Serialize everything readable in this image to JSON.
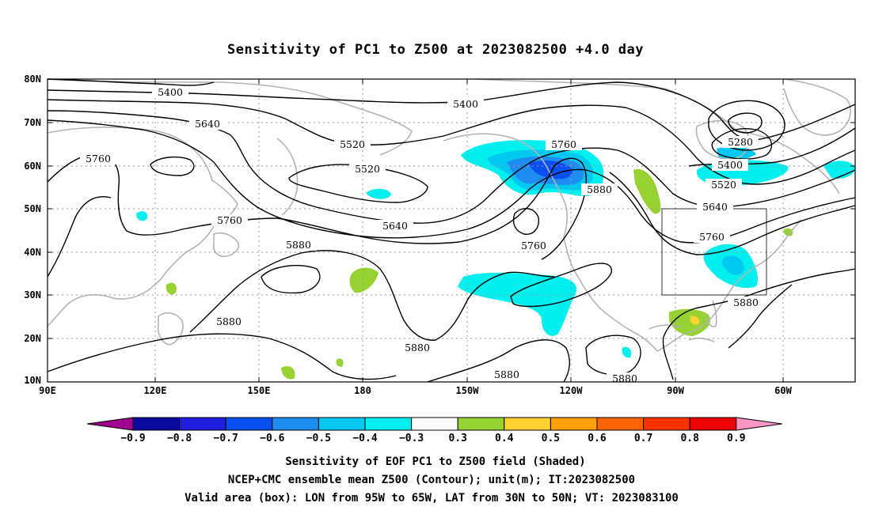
{
  "title": "Sensitivity of PC1 to Z500 at 2023082500 +4.0 day",
  "map": {
    "lat_ticks": [
      "80N",
      "70N",
      "60N",
      "50N",
      "40N",
      "30N",
      "20N",
      "10N"
    ],
    "lon_ticks": [
      "90E",
      "120E",
      "150E",
      "180",
      "150W",
      "120W",
      "90W",
      "60W"
    ],
    "grid": "dotted",
    "valid_box": {
      "lon_from": "95W",
      "lon_to": "65W",
      "lat_from": "30N",
      "lat_to": "50N"
    },
    "contour_labels": {
      "c5400a": "5400",
      "c5400b": "5400",
      "c5400c": "5400",
      "c5640a": "5640",
      "c5640b": "5640",
      "c5640c": "5640",
      "c5520a": "5520",
      "c5520b": "5520",
      "c5520c": "5520",
      "c5760a": "5760",
      "c5760b": "5760",
      "c5760c": "5760",
      "c5760d": "5760",
      "c5760e": "5760",
      "c5880a": "5880",
      "c5880b": "5880",
      "c5880c": "5880",
      "c5880d": "5880",
      "c5880e": "5880",
      "c5880f": "5880",
      "c5880g": "5880",
      "c5280": "5280"
    }
  },
  "colorbar": {
    "labels": [
      "−0.9",
      "−0.8",
      "−0.7",
      "−0.6",
      "−0.5",
      "−0.4",
      "−0.3",
      "0.3",
      "0.4",
      "0.5",
      "0.6",
      "0.7",
      "0.8",
      "0.9"
    ],
    "colors": [
      "#a00090",
      "#0a0aa0",
      "#1e1edc",
      "#0a50f0",
      "#1e8cf0",
      "#00c8f0",
      "#00f0f0",
      "#ffffff",
      "#96d232",
      "#ffd232",
      "#ffa000",
      "#ff6400",
      "#ff3200",
      "#f00000",
      "#ff96c8"
    ]
  },
  "caption": {
    "line1": "Sensitivity of EOF PC1 to Z500 field (Shaded)",
    "line2": "NCEP+CMC ensemble mean Z500 (Contour); unit(m); IT:2023082500",
    "line3": "Valid area (box): LON from 95W to 65W, LAT from 30N to 50N; VT: 2023083100"
  }
}
